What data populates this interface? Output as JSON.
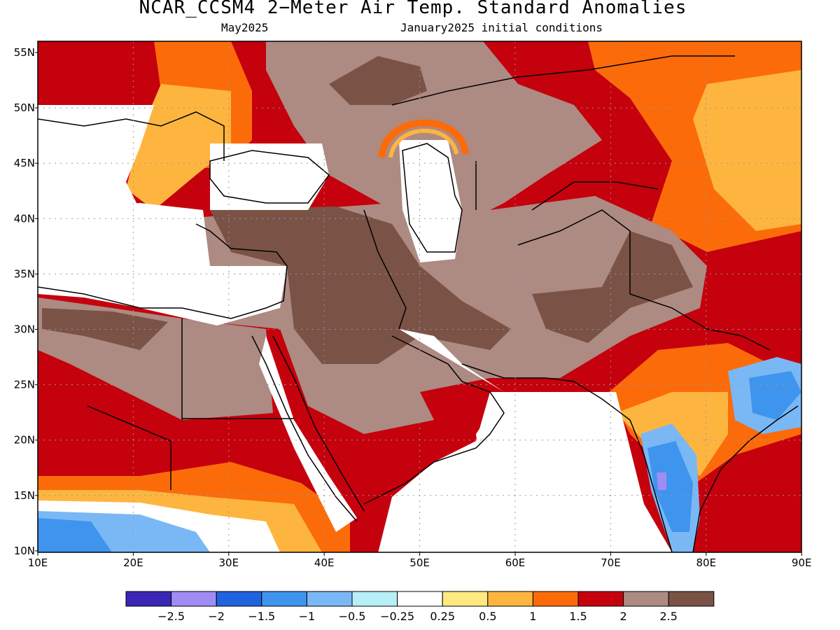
{
  "header": {
    "title": "NCAR_CCSM4 2−Meter Air Temp. Standard Anomalies",
    "valid_month": "May2025",
    "init": "January2025 initial conditions"
  },
  "map": {
    "lat_ticks": [
      "55N",
      "50N",
      "45N",
      "40N",
      "35N",
      "30N",
      "25N",
      "20N",
      "15N",
      "10N"
    ],
    "lon_ticks": [
      "10E",
      "20E",
      "30E",
      "40E",
      "50E",
      "60E",
      "70E",
      "80E",
      "90E"
    ]
  },
  "colorbar": {
    "colors": [
      "#3a26b4",
      "#9f8cf5",
      "#1f63df",
      "#3f94ee",
      "#79b8f5",
      "#b6eff8",
      "#ffffff",
      "#feea80",
      "#feb53f",
      "#fc6b0a",
      "#c5010d",
      "#ad8a82",
      "#7a5346"
    ],
    "labels": [
      "−2.5",
      "−2",
      "−1.5",
      "−1",
      "−0.5",
      "−0.25",
      "0.25",
      "0.5",
      "1",
      "1.5",
      "2",
      "2.5"
    ]
  }
}
